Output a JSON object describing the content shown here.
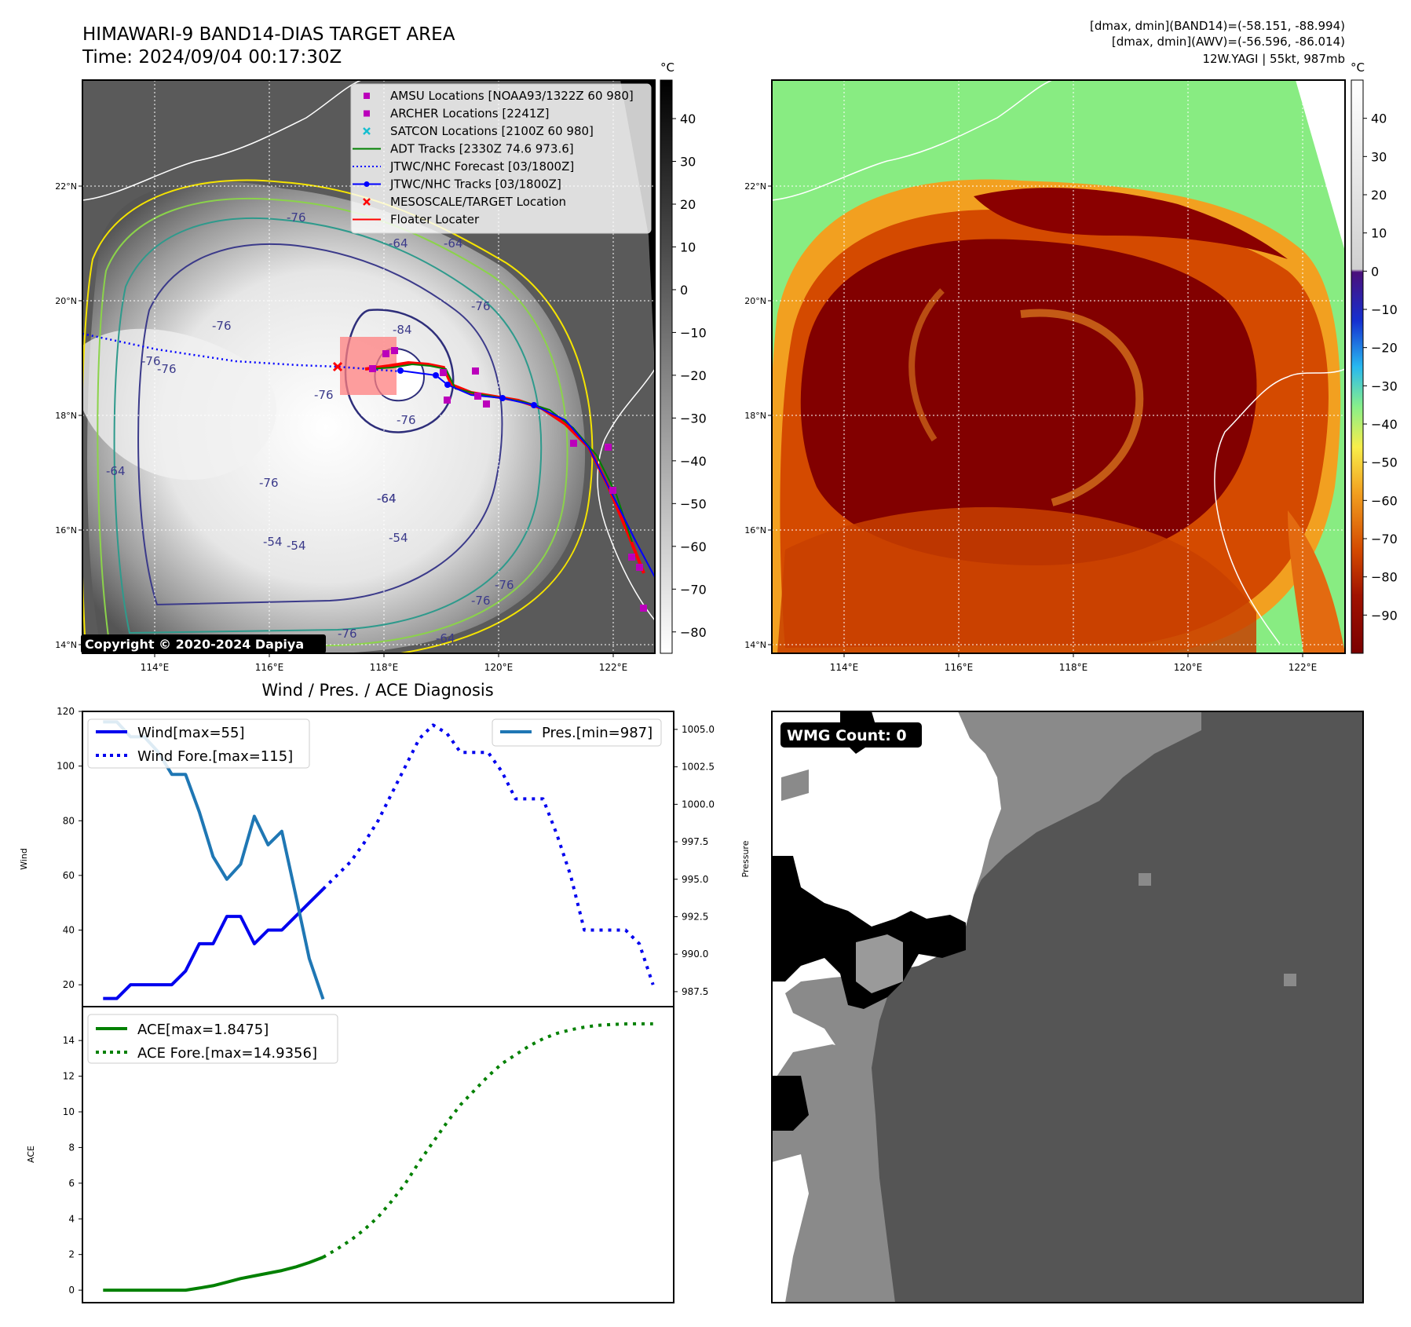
{
  "header": {
    "title": "HIMAWARI-9 BAND14-DIAS TARGET AREA",
    "time": "Time: 2024/09/04 00:17:30Z",
    "dmax_band14": "[dmax, dmin](BAND14)=(-58.151, -88.994)",
    "dmax_awv": "[dmax, dmin](AWV)=(-56.596, -86.014)",
    "storm": "12W.YAGI | 55kt, 987mb"
  },
  "copyright": "Copyright © 2020-2024 Dapiya",
  "unit_label": "°C",
  "map_axes": {
    "lon_ticks": [
      "114°E",
      "116°E",
      "118°E",
      "120°E",
      "122°E"
    ],
    "lat_ticks": [
      "22°N",
      "20°N",
      "18°N",
      "16°N",
      "14°N"
    ]
  },
  "contour_labels": [
    "-76",
    "-64",
    "-76",
    "-76",
    "-76",
    "-76",
    "-64",
    "-76",
    "-54",
    "-64",
    "-64",
    "-76",
    "-76",
    "-76",
    "-64",
    "-54",
    "-54",
    "-76",
    "-64",
    "-76",
    "-84"
  ],
  "colorbar_ir": {
    "ticks": [
      "40",
      "30",
      "20",
      "10",
      "0",
      "−10",
      "−20",
      "−30",
      "−40",
      "−50",
      "−60",
      "−70",
      "−80"
    ],
    "range": [
      -85,
      49
    ]
  },
  "colorbar_wv": {
    "ticks": [
      "40",
      "30",
      "20",
      "10",
      "0",
      "−10",
      "−20",
      "−30",
      "−40",
      "−50",
      "−60",
      "−70",
      "−80",
      "−90"
    ],
    "range": [
      -100,
      50
    ]
  },
  "map_legend": [
    {
      "label": "AMSU Locations [NOAA93/1322Z 60 980]",
      "marker": "square",
      "color": "#bb00bb"
    },
    {
      "label": "ARCHER Locations [2241Z]",
      "marker": "square",
      "color": "#bb00bb"
    },
    {
      "label": "SATCON Locations [2100Z 60 980]",
      "marker": "x",
      "color": "#17becf"
    },
    {
      "label": "ADT Tracks [2330Z 74.6 973.6]",
      "marker": "line",
      "color": "#008000"
    },
    {
      "label": "JTWC/NHC Forecast [03/1800Z]",
      "marker": "dotted",
      "color": "#0000ff"
    },
    {
      "label": "JTWC/NHC Tracks [03/1800Z]",
      "marker": "line-dot",
      "color": "#0000ff"
    },
    {
      "label": "MESOSCALE/TARGET Location",
      "marker": "x",
      "color": "#ff0000"
    },
    {
      "label": "Floater Locater",
      "marker": "line",
      "color": "#ff0000"
    }
  ],
  "diag": {
    "title": "Wind / Pres. / ACE Diagnosis",
    "wind_ylabel": "Wind",
    "pres_ylabel": "Pressure",
    "ace_ylabel": "ACE",
    "legend_wind": "Wind[max=55]",
    "legend_wind_fore": "Wind Fore.[max=115]",
    "legend_pres": "Pres.[min=987]",
    "legend_ace": "ACE[max=1.8475]",
    "legend_ace_fore": "ACE Fore.[max=14.9356]"
  },
  "wmg_label": "WMG Count: 0",
  "chart_data": [
    {
      "type": "line",
      "name": "wind-pressure",
      "x": [
        0,
        1,
        2,
        3,
        4,
        5,
        6,
        7,
        8,
        9,
        10,
        11,
        12,
        13,
        14,
        15,
        16
      ],
      "series": [
        {
          "name": "Wind[max=55]",
          "axis": "left",
          "color": "#0000ee",
          "values": [
            15,
            15,
            20,
            20,
            20,
            20,
            25,
            35,
            35,
            45,
            45,
            35,
            40,
            40,
            45,
            50,
            55
          ]
        },
        {
          "name": "Pres.[min=987]",
          "axis": "right",
          "color": "#1f77b4",
          "values": [
            1005.5,
            1005.5,
            1004.5,
            1004.5,
            1003.5,
            1002,
            1002,
            999.5,
            996.5,
            995,
            996,
            999.2,
            997.3,
            998.2,
            994,
            989.7,
            987
          ]
        },
        {
          "name": "Wind Fore.[max=115]",
          "axis": "left",
          "style": "dotted",
          "color": "#0000ee",
          "x": [
            16,
            17,
            18,
            19,
            20,
            21,
            22,
            23,
            24,
            25,
            26,
            27,
            28,
            29,
            30,
            31,
            32,
            33,
            34,
            35,
            36,
            37,
            38,
            39,
            40
          ],
          "values": [
            55,
            60,
            65,
            72,
            80,
            90,
            100,
            110,
            115,
            112,
            105,
            105,
            105,
            98,
            88,
            88,
            88,
            75,
            60,
            40,
            40,
            40,
            40,
            35,
            20
          ]
        }
      ],
      "ylim_left": [
        12,
        120
      ],
      "yticks_left": [
        20,
        40,
        60,
        80,
        100,
        120
      ],
      "ylim_right": [
        986.5,
        1006.2
      ],
      "yticks_right": [
        987.5,
        990.0,
        992.5,
        995.0,
        997.5,
        1000.0,
        1002.5,
        1005.0
      ],
      "xlim": [
        -1.5,
        41.5
      ]
    },
    {
      "type": "line",
      "name": "ace",
      "x": [
        0,
        1,
        2,
        3,
        4,
        5,
        6,
        7,
        8,
        9,
        10,
        11,
        12,
        13,
        14,
        15,
        16
      ],
      "series": [
        {
          "name": "ACE[max=1.8475]",
          "color": "#008000",
          "values": [
            0,
            0,
            0,
            0,
            0,
            0,
            0,
            0.12,
            0.25,
            0.45,
            0.65,
            0.8,
            0.95,
            1.1,
            1.3,
            1.55,
            1.8475
          ]
        },
        {
          "name": "ACE Fore.[max=14.9356]",
          "style": "dotted",
          "color": "#008000",
          "x": [
            16,
            17,
            18,
            19,
            20,
            21,
            22,
            23,
            24,
            25,
            26,
            27,
            28,
            29,
            30,
            31,
            32,
            33,
            34,
            35,
            36,
            37,
            38,
            39,
            40
          ],
          "values": [
            1.85,
            2.3,
            2.8,
            3.4,
            4.1,
            5.0,
            6.0,
            7.2,
            8.3,
            9.4,
            10.4,
            11.2,
            12.0,
            12.7,
            13.2,
            13.7,
            14.1,
            14.4,
            14.6,
            14.75,
            14.85,
            14.9,
            14.93,
            14.94,
            14.9356
          ]
        }
      ],
      "ylim": [
        -0.7,
        15.9
      ],
      "yticks": [
        0,
        2,
        4,
        6,
        8,
        10,
        12,
        14
      ],
      "xlim": [
        -1.5,
        41.5
      ]
    }
  ]
}
